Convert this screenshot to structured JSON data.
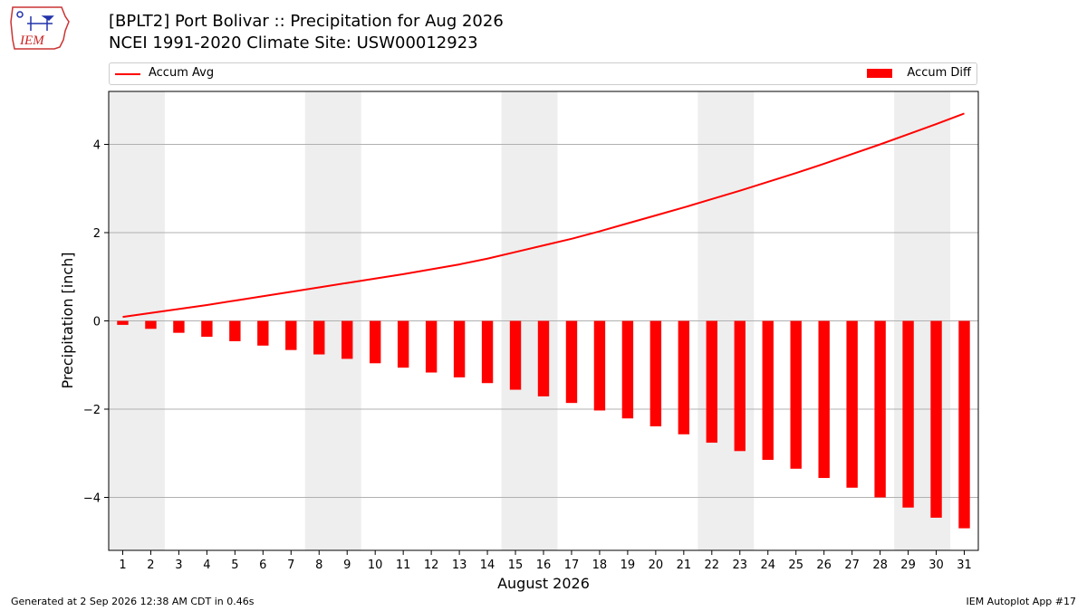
{
  "header": {
    "title": "[BPLT2] Port Bolivar :: Precipitation for Aug 2026",
    "subtitle": "NCEI 1991-2020 Climate Site: USW00012923"
  },
  "logo": {
    "text": "IEM"
  },
  "legend": {
    "line_label": "Accum Avg",
    "bar_label": "Accum Diff"
  },
  "footer": {
    "left": "Generated at 2 Sep 2026 12:38 AM CDT in 0.46s",
    "right": "IEM Autoplot App #17"
  },
  "colors": {
    "series": "#ff0000",
    "weekend_shade": "#eeeeee",
    "grid": "#b0b0b0"
  },
  "chart_data": {
    "type": "bar",
    "xlabel": "August 2026",
    "ylabel": "Precipitation [inch]",
    "xlim": [
      0.5,
      31.5
    ],
    "ylim": [
      -5.2,
      5.2
    ],
    "yticks": [
      -4,
      -2,
      0,
      2,
      4
    ],
    "ytick_labels": [
      "−4",
      "−2",
      "0",
      "2",
      "4"
    ],
    "grid": "horizontal",
    "legend_position": "top",
    "weekend_shading_days": [
      [
        1,
        2
      ],
      [
        8,
        9
      ],
      [
        15,
        16
      ],
      [
        22,
        23
      ],
      [
        29,
        30
      ]
    ],
    "categories": [
      "1",
      "2",
      "3",
      "4",
      "5",
      "6",
      "7",
      "8",
      "9",
      "10",
      "11",
      "12",
      "13",
      "14",
      "15",
      "16",
      "17",
      "18",
      "19",
      "20",
      "21",
      "22",
      "23",
      "24",
      "25",
      "26",
      "27",
      "28",
      "29",
      "30",
      "31"
    ],
    "series": [
      {
        "name": "Accum Avg",
        "type": "line",
        "values": [
          0.09,
          0.18,
          0.27,
          0.36,
          0.46,
          0.56,
          0.66,
          0.76,
          0.86,
          0.96,
          1.06,
          1.17,
          1.28,
          1.41,
          1.56,
          1.71,
          1.86,
          2.03,
          2.21,
          2.39,
          2.57,
          2.76,
          2.95,
          3.15,
          3.35,
          3.56,
          3.78,
          4.0,
          4.23,
          4.46,
          4.7
        ]
      },
      {
        "name": "Accum Diff",
        "type": "bar",
        "values": [
          -0.09,
          -0.18,
          -0.27,
          -0.36,
          -0.46,
          -0.56,
          -0.66,
          -0.76,
          -0.86,
          -0.96,
          -1.06,
          -1.17,
          -1.28,
          -1.41,
          -1.56,
          -1.71,
          -1.86,
          -2.03,
          -2.21,
          -2.39,
          -2.57,
          -2.76,
          -2.95,
          -3.15,
          -3.35,
          -3.56,
          -3.78,
          -4.0,
          -4.23,
          -4.46,
          -4.7
        ]
      }
    ]
  }
}
